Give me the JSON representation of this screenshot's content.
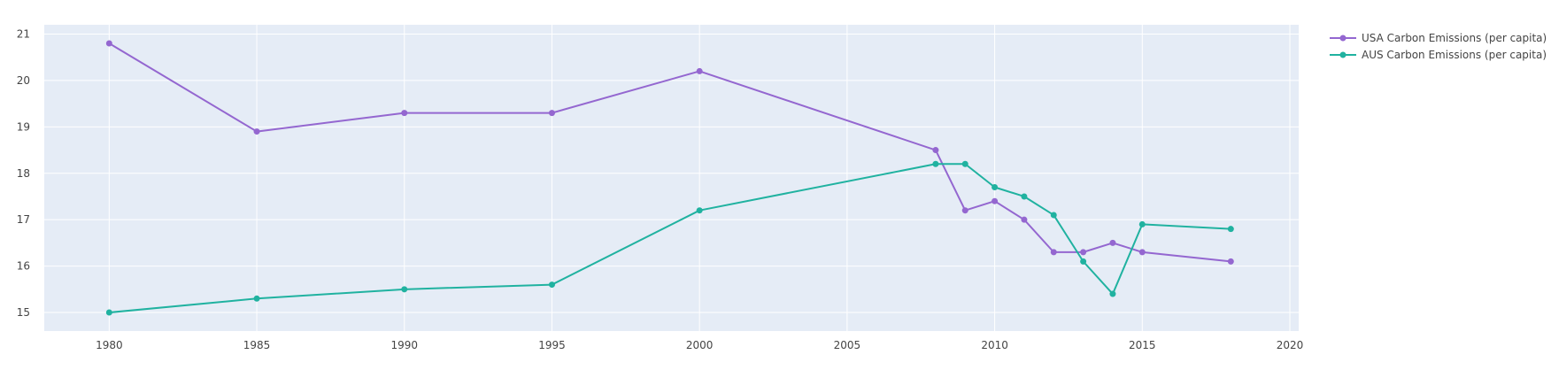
{
  "chart_data": {
    "type": "line",
    "x_ticks": [
      1980,
      1985,
      1990,
      1995,
      2000,
      2005,
      2010,
      2015,
      2020
    ],
    "y_ticks": [
      15,
      16,
      17,
      18,
      19,
      20,
      21
    ],
    "xlim": [
      1977.8,
      2020.3
    ],
    "ylim": [
      14.6,
      21.2
    ],
    "grid": true,
    "legend_position": "top-right",
    "plot_bgcolor": "#E5ECF6",
    "series": [
      {
        "name": "USA Carbon Emissions (per capita)",
        "color": "#9467D0",
        "points": [
          [
            1980,
            20.8
          ],
          [
            1985,
            18.9
          ],
          [
            1990,
            19.3
          ],
          [
            1995,
            19.3
          ],
          [
            2000,
            20.2
          ],
          [
            2008,
            18.5
          ],
          [
            2009,
            17.2
          ],
          [
            2010,
            17.4
          ],
          [
            2011,
            17.0
          ],
          [
            2012,
            16.3
          ],
          [
            2013,
            16.3
          ],
          [
            2014,
            16.5
          ],
          [
            2015,
            16.3
          ],
          [
            2018,
            16.1
          ]
        ]
      },
      {
        "name": "AUS Carbon Emissions (per capita)",
        "color": "#20B2A0",
        "points": [
          [
            1980,
            15.0
          ],
          [
            1985,
            15.3
          ],
          [
            1990,
            15.5
          ],
          [
            1995,
            15.6
          ],
          [
            2000,
            17.2
          ],
          [
            2008,
            18.2
          ],
          [
            2009,
            18.2
          ],
          [
            2010,
            17.7
          ],
          [
            2011,
            17.5
          ],
          [
            2012,
            17.1
          ],
          [
            2013,
            16.1
          ],
          [
            2014,
            15.4
          ],
          [
            2015,
            16.9
          ],
          [
            2018,
            16.8
          ]
        ]
      }
    ]
  }
}
